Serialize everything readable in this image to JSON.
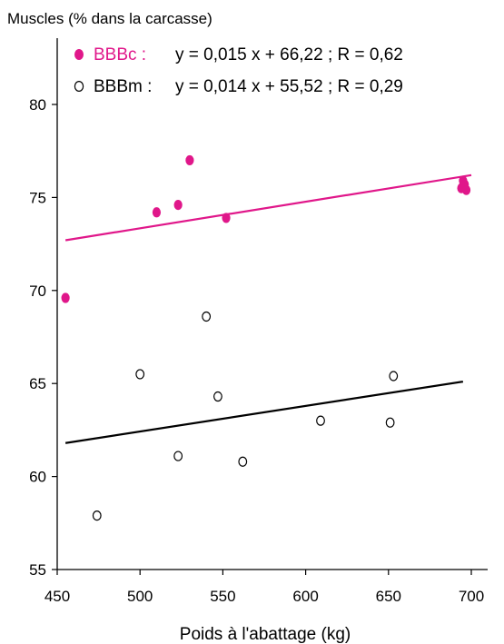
{
  "chart_data": {
    "type": "scatter",
    "ylabel": "Muscles (% dans la carcasse)",
    "xlabel": "Poids à l'abattage (kg)",
    "xlim": [
      450,
      700
    ],
    "ylim": [
      55,
      80
    ],
    "xticks": [
      "450",
      "500",
      "550",
      "600",
      "650",
      "700"
    ],
    "yticks": [
      "55",
      "60",
      "65",
      "70",
      "75",
      "80"
    ],
    "grid": false,
    "legend_position": "top-left",
    "series": [
      {
        "name": "BBBc",
        "legend_label": "BBBc :",
        "equation": "y = 0,015 x + 66,22 ; R = 0,62",
        "marker": "filled",
        "color": "#e0178a",
        "points": [
          {
            "x": 455,
            "y": 69.6
          },
          {
            "x": 510,
            "y": 74.2
          },
          {
            "x": 523,
            "y": 74.6
          },
          {
            "x": 530,
            "y": 77.0
          },
          {
            "x": 552,
            "y": 73.9
          },
          {
            "x": 694,
            "y": 75.5
          },
          {
            "x": 695,
            "y": 75.9
          },
          {
            "x": 696,
            "y": 75.7
          },
          {
            "x": 697,
            "y": 75.4
          }
        ],
        "fit": {
          "x": [
            455,
            700
          ],
          "y": [
            72.7,
            76.2
          ]
        }
      },
      {
        "name": "BBBm",
        "legend_label": "BBBm :",
        "equation": "y = 0,014 x + 55,52 ; R = 0,29",
        "marker": "open",
        "color": "#000000",
        "points": [
          {
            "x": 474,
            "y": 57.9
          },
          {
            "x": 500,
            "y": 65.5
          },
          {
            "x": 523,
            "y": 61.1
          },
          {
            "x": 540,
            "y": 68.6
          },
          {
            "x": 547,
            "y": 64.3
          },
          {
            "x": 562,
            "y": 60.8
          },
          {
            "x": 609,
            "y": 63.0
          },
          {
            "x": 651,
            "y": 62.9
          },
          {
            "x": 653,
            "y": 65.4
          }
        ],
        "fit": {
          "x": [
            455,
            695
          ],
          "y": [
            61.8,
            65.1
          ]
        }
      }
    ]
  }
}
